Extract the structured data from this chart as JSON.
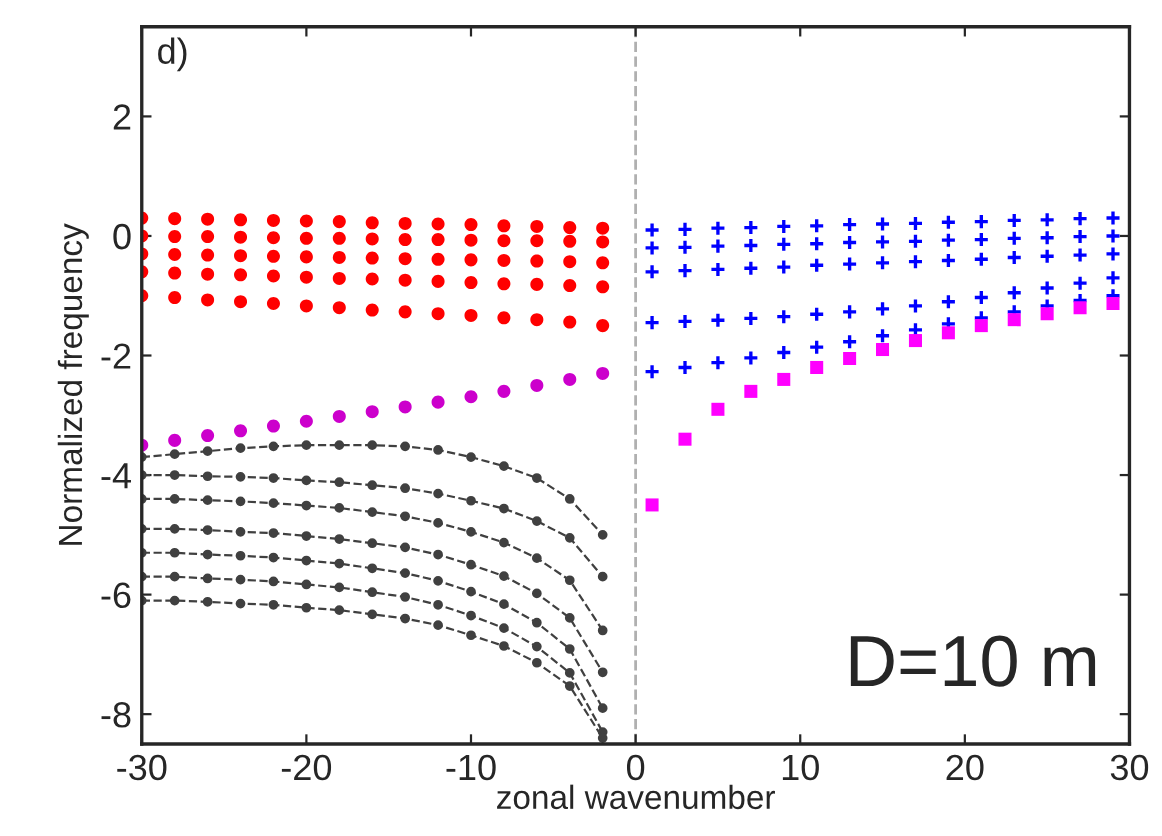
{
  "chart_data": {
    "type": "scatter",
    "xlabel": "zonal wavenumber",
    "ylabel": "Normalized frequency",
    "xlim": [
      -30,
      30
    ],
    "ylim": [
      -8.5,
      3.5
    ],
    "xticks": [
      -30,
      -20,
      -10,
      0,
      10,
      20,
      30
    ],
    "yticks": [
      -8,
      -6,
      -4,
      -2,
      0,
      2
    ],
    "grid": false,
    "legend": false,
    "annotations": [
      "d)",
      "D=10 m"
    ],
    "ref_lines": [
      {
        "axis": "x",
        "value": 0,
        "color": "#b0b0b0",
        "line_style": "dashed"
      }
    ],
    "series": [
      {
        "type": "scatter",
        "marker": "circle",
        "color": "#ff0000",
        "x": [
          -30,
          -28,
          -26,
          -24,
          -22,
          -20,
          -18,
          -16,
          -14,
          -12,
          -10,
          -8,
          -6,
          -4,
          -2
        ],
        "values": [
          0.3,
          0.29,
          0.28,
          0.27,
          0.26,
          0.25,
          0.24,
          0.22,
          0.21,
          0.2,
          0.19,
          0.17,
          0.16,
          0.14,
          0.13
        ]
      },
      {
        "type": "scatter",
        "marker": "circle",
        "color": "#ff0000",
        "x": [
          -30,
          -28,
          -26,
          -24,
          -22,
          -20,
          -18,
          -16,
          -14,
          -12,
          -10,
          -8,
          -6,
          -4,
          -2
        ],
        "values": [
          0,
          -0.01,
          -0.01,
          -0.02,
          -0.03,
          -0.04,
          -0.04,
          -0.05,
          -0.06,
          -0.06,
          -0.07,
          -0.08,
          -0.08,
          -0.09,
          -0.1
        ]
      },
      {
        "type": "scatter",
        "marker": "circle",
        "color": "#ff0000",
        "x": [
          -30,
          -28,
          -26,
          -24,
          -22,
          -20,
          -18,
          -16,
          -14,
          -12,
          -10,
          -8,
          -6,
          -4,
          -2
        ],
        "values": [
          -0.3,
          -0.31,
          -0.32,
          -0.33,
          -0.34,
          -0.35,
          -0.36,
          -0.37,
          -0.38,
          -0.39,
          -0.4,
          -0.41,
          -0.42,
          -0.43,
          -0.45
        ]
      },
      {
        "type": "scatter",
        "marker": "circle",
        "color": "#ff0000",
        "x": [
          -30,
          -28,
          -26,
          -24,
          -22,
          -20,
          -18,
          -16,
          -14,
          -12,
          -10,
          -8,
          -6,
          -4,
          -2
        ],
        "values": [
          -0.6,
          -0.62,
          -0.64,
          -0.65,
          -0.67,
          -0.69,
          -0.71,
          -0.72,
          -0.74,
          -0.76,
          -0.78,
          -0.8,
          -0.81,
          -0.83,
          -0.85
        ]
      },
      {
        "type": "scatter",
        "marker": "circle",
        "color": "#ff0000",
        "x": [
          -30,
          -28,
          -26,
          -24,
          -22,
          -20,
          -18,
          -16,
          -14,
          -12,
          -10,
          -8,
          -6,
          -4,
          -2
        ],
        "values": [
          -1.0,
          -1.03,
          -1.07,
          -1.1,
          -1.13,
          -1.17,
          -1.2,
          -1.24,
          -1.27,
          -1.3,
          -1.33,
          -1.37,
          -1.4,
          -1.44,
          -1.5
        ]
      },
      {
        "type": "scatter",
        "marker": "cross",
        "color": "#0000ff",
        "x": [
          1,
          3,
          5,
          7,
          9,
          11,
          13,
          15,
          17,
          19,
          21,
          23,
          25,
          27,
          29
        ],
        "values": [
          0.1,
          0.11,
          0.13,
          0.14,
          0.16,
          0.17,
          0.19,
          0.2,
          0.21,
          0.23,
          0.24,
          0.26,
          0.27,
          0.29,
          0.3
        ]
      },
      {
        "type": "scatter",
        "marker": "cross",
        "color": "#0000ff",
        "x": [
          1,
          3,
          5,
          7,
          9,
          11,
          13,
          15,
          17,
          19,
          21,
          23,
          25,
          27,
          29
        ],
        "values": [
          -0.2,
          -0.19,
          -0.17,
          -0.16,
          -0.14,
          -0.13,
          -0.11,
          -0.1,
          -0.09,
          -0.07,
          -0.06,
          -0.04,
          -0.03,
          -0.01,
          0
        ]
      },
      {
        "type": "scatter",
        "marker": "cross",
        "color": "#0000ff",
        "x": [
          1,
          3,
          5,
          7,
          9,
          11,
          13,
          15,
          17,
          19,
          21,
          23,
          25,
          27,
          29
        ],
        "values": [
          -0.6,
          -0.58,
          -0.56,
          -0.54,
          -0.52,
          -0.49,
          -0.47,
          -0.45,
          -0.43,
          -0.41,
          -0.39,
          -0.36,
          -0.34,
          -0.32,
          -0.3
        ]
      },
      {
        "type": "scatter",
        "marker": "cross",
        "color": "#0000ff",
        "x": [
          1,
          3,
          5,
          7,
          9,
          11,
          13,
          15,
          17,
          19,
          21,
          23,
          25,
          27,
          29
        ],
        "values": [
          -1.45,
          -1.43,
          -1.41,
          -1.38,
          -1.35,
          -1.31,
          -1.27,
          -1.22,
          -1.17,
          -1.1,
          -1.03,
          -0.95,
          -0.87,
          -0.79,
          -0.7
        ]
      },
      {
        "type": "scatter",
        "marker": "cross",
        "color": "#0000ff",
        "x": [
          1,
          3,
          5,
          7,
          9,
          11,
          13,
          15,
          17,
          19,
          21,
          23,
          25,
          27,
          29
        ],
        "values": [
          -2.27,
          -2.2,
          -2.12,
          -2.04,
          -1.95,
          -1.86,
          -1.77,
          -1.67,
          -1.57,
          -1.47,
          -1.37,
          -1.27,
          -1.17,
          -1.08,
          -1.0
        ]
      },
      {
        "type": "scatter",
        "marker": "circle",
        "color": "#cc00cc",
        "x": [
          -30,
          -28,
          -26,
          -24,
          -22,
          -20,
          -18,
          -16,
          -14,
          -12,
          -10,
          -8,
          -6,
          -4,
          -2
        ],
        "values": [
          -3.5,
          -3.42,
          -3.34,
          -3.26,
          -3.18,
          -3.1,
          -3.02,
          -2.94,
          -2.86,
          -2.78,
          -2.69,
          -2.6,
          -2.5,
          -2.4,
          -2.3
        ]
      },
      {
        "type": "scatter",
        "marker": "square",
        "color": "#ff00ff",
        "x": [
          1,
          3,
          5,
          7,
          9,
          11,
          13,
          15,
          17,
          19,
          21,
          23,
          25,
          27,
          29
        ],
        "values": [
          -4.5,
          -3.4,
          -2.9,
          -2.6,
          -2.4,
          -2.2,
          -2.05,
          -1.9,
          -1.75,
          -1.62,
          -1.5,
          -1.4,
          -1.3,
          -1.2,
          -1.13
        ]
      },
      {
        "type": "line",
        "marker": "circle",
        "line_style": "dashed",
        "color": "#404040",
        "x": [
          -30,
          -28,
          -26,
          -24,
          -22,
          -20,
          -18,
          -16,
          -14,
          -12,
          -10,
          -8,
          -6,
          -4,
          -2
        ],
        "values": [
          -3.7,
          -3.65,
          -3.6,
          -3.55,
          -3.52,
          -3.5,
          -3.5,
          -3.5,
          -3.52,
          -3.58,
          -3.7,
          -3.85,
          -4.05,
          -4.4,
          -5.0
        ]
      },
      {
        "type": "line",
        "marker": "circle",
        "line_style": "dashed",
        "color": "#404040",
        "x": [
          -30,
          -28,
          -26,
          -24,
          -22,
          -20,
          -18,
          -16,
          -14,
          -12,
          -10,
          -8,
          -6,
          -4,
          -2
        ],
        "values": [
          -4.0,
          -4.0,
          -4.02,
          -4.03,
          -4.05,
          -4.09,
          -4.12,
          -4.17,
          -4.22,
          -4.31,
          -4.43,
          -4.56,
          -4.77,
          -5.05,
          -5.7
        ]
      },
      {
        "type": "line",
        "marker": "circle",
        "line_style": "dashed",
        "color": "#404040",
        "x": [
          -30,
          -28,
          -26,
          -24,
          -22,
          -20,
          -18,
          -16,
          -14,
          -12,
          -10,
          -8,
          -6,
          -4,
          -2
        ],
        "values": [
          -4.4,
          -4.4,
          -4.42,
          -4.44,
          -4.47,
          -4.51,
          -4.55,
          -4.62,
          -4.69,
          -4.8,
          -4.95,
          -5.13,
          -5.39,
          -5.76,
          -6.6
        ]
      },
      {
        "type": "line",
        "marker": "circle",
        "line_style": "dashed",
        "color": "#404040",
        "x": [
          -30,
          -28,
          -26,
          -24,
          -22,
          -20,
          -18,
          -16,
          -14,
          -12,
          -10,
          -8,
          -6,
          -4,
          -2
        ],
        "values": [
          -4.9,
          -4.9,
          -4.92,
          -4.95,
          -4.97,
          -5.02,
          -5.07,
          -5.14,
          -5.21,
          -5.33,
          -5.5,
          -5.69,
          -5.98,
          -6.39,
          -7.3
        ]
      },
      {
        "type": "line",
        "marker": "circle",
        "line_style": "dashed",
        "color": "#404040",
        "x": [
          -30,
          -28,
          -26,
          -24,
          -22,
          -20,
          -18,
          -16,
          -14,
          -12,
          -10,
          -8,
          -6,
          -4,
          -2
        ],
        "values": [
          -5.3,
          -5.3,
          -5.33,
          -5.35,
          -5.38,
          -5.43,
          -5.48,
          -5.56,
          -5.64,
          -5.77,
          -5.95,
          -6.16,
          -6.47,
          -6.91,
          -7.9
        ]
      },
      {
        "type": "line",
        "marker": "circle",
        "line_style": "dashed",
        "color": "#404040",
        "x": [
          -30,
          -28,
          -26,
          -24,
          -22,
          -20,
          -18,
          -16,
          -14,
          -12,
          -10,
          -8,
          -6,
          -4,
          -2
        ],
        "values": [
          -5.7,
          -5.7,
          -5.73,
          -5.75,
          -5.78,
          -5.83,
          -5.88,
          -5.96,
          -6.04,
          -6.17,
          -6.35,
          -6.56,
          -6.87,
          -7.31,
          -8.3
        ]
      },
      {
        "type": "line",
        "marker": "circle",
        "line_style": "dashed",
        "color": "#404040",
        "x": [
          -30,
          -28,
          -26,
          -24,
          -22,
          -20,
          -18,
          -16,
          -14,
          -12,
          -10,
          -8,
          -6,
          -4,
          -2
        ],
        "values": [
          -6.1,
          -6.1,
          -6.12,
          -6.15,
          -6.17,
          -6.22,
          -6.26,
          -6.33,
          -6.4,
          -6.51,
          -6.68,
          -6.86,
          -7.14,
          -7.53,
          -8.4
        ]
      }
    ]
  }
}
